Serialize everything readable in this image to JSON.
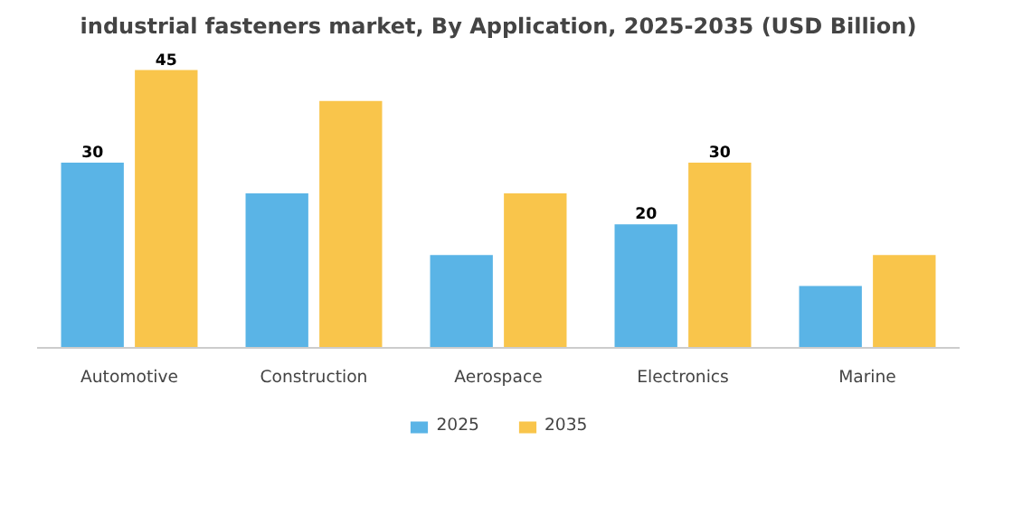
{
  "chart_data": {
    "type": "bar",
    "title": "industrial fasteners market, By Application, 2025-2035 (USD Billion)",
    "categories": [
      "Automotive",
      "Construction",
      "Aerospace",
      "Electronics",
      "Marine"
    ],
    "series": [
      {
        "name": "2025",
        "color": "#5ab4e6",
        "values": [
          30,
          25,
          15,
          20,
          10
        ],
        "value_labels": [
          "30",
          null,
          null,
          "20",
          null
        ]
      },
      {
        "name": "2035",
        "color": "#f9c54b",
        "values": [
          45,
          40,
          25,
          30,
          15
        ],
        "value_labels": [
          "45",
          null,
          null,
          "30",
          null
        ]
      }
    ],
    "legend": "bottom"
  }
}
